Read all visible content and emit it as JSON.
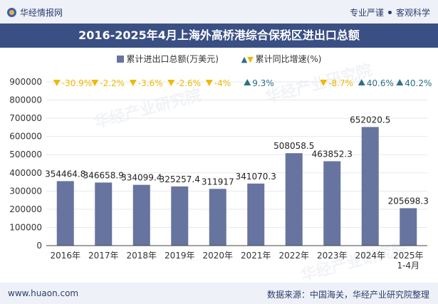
{
  "header": {
    "brand": "华经情报网",
    "tagline_left": "专业严谨",
    "tagline_right": "客观科学"
  },
  "footer": {
    "url": "www.huaon.com",
    "source": "数据来源：中国海关，华经产业研究院整理"
  },
  "watermark": "华经产业研究院",
  "colors": {
    "bar": "#66749f",
    "growth_up": "#2e6f86",
    "growth_down": "#f0b800",
    "title_bg": "#3a4f84",
    "band_bg": "#eef1f7"
  },
  "chart_data": {
    "type": "bar",
    "title": "2016-2025年4月上海外高桥港综合保税区进出口总额",
    "categories": [
      "2016年",
      "2017年",
      "2018年",
      "2019年",
      "2020年",
      "2021年",
      "2022年",
      "2023年",
      "2024年",
      "2025年\n1-4月"
    ],
    "series": [
      {
        "name": "累计进出口总额(万美元)",
        "values": [
          354464.8,
          346658.9,
          334099.4,
          325257.4,
          311917,
          341070.3,
          508058.5,
          463852.3,
          652020.5,
          205698.3
        ],
        "labels": [
          "354464.8",
          "346658.9",
          "334099.4",
          "325257.4",
          "311917",
          "341070.3",
          "508058.5",
          "463852.3",
          "652020.5",
          "205698.3"
        ]
      },
      {
        "name": "累计同比增速(%)",
        "values": [
          -30.9,
          -2.2,
          -3.6,
          -2.6,
          -4,
          9.3,
          null,
          -8.7,
          40.6,
          40.2
        ],
        "labels": [
          "-30.9%",
          "-2.2%",
          "-3.6%",
          "-2.6%",
          "-4%",
          "9.3%",
          "",
          "-8.7%",
          "40.6%",
          "40.2%"
        ]
      }
    ],
    "ylim": [
      0,
      900000
    ],
    "yticks": [
      "900000",
      "800000",
      "700000",
      "600000",
      "500000",
      "400000",
      "300000",
      "200000",
      "100000",
      "0"
    ],
    "xlabel": "",
    "ylabel": "",
    "legend_position": "top-center"
  }
}
